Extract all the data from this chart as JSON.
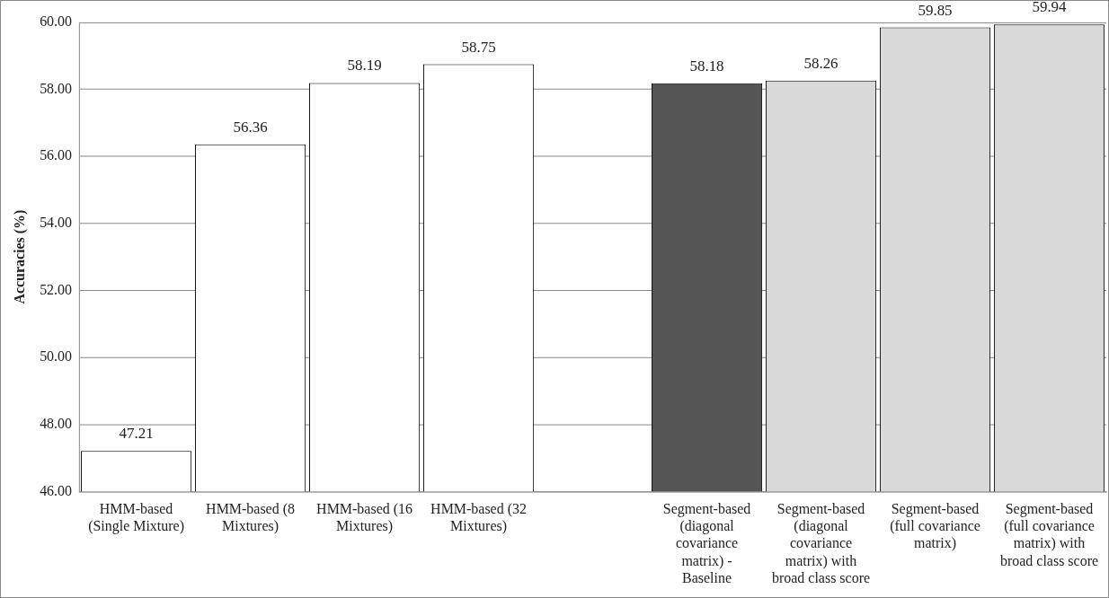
{
  "chart_data": {
    "type": "bar",
    "ylabel": "Accuracies (%)",
    "categories": [
      "HMM-based (Single Mixture)",
      "HMM-based (8 Mixtures)",
      "HMM-based (16 Mixtures)",
      "HMM-based (32 Mixtures)",
      null,
      "Segment-based (diagonal covariance matrix) - Baseline",
      "Segment-based (diagonal covariance matrix) with broad class score",
      "Segment-based (full covariance matrix)",
      "Segment-based (full covariance matrix) with broad class score"
    ],
    "values": [
      47.21,
      56.36,
      58.19,
      58.75,
      null,
      58.18,
      58.26,
      59.85,
      59.94
    ],
    "colors": [
      "#ffffff",
      "#ffffff",
      "#ffffff",
      "#ffffff",
      "#ffffff",
      "#555555",
      "#d9d9d9",
      "#d9d9d9",
      "#d9d9d9"
    ],
    "ylim": [
      46,
      60
    ],
    "yticks": [
      {
        "value": 46,
        "label": "46.00"
      },
      {
        "value": 48,
        "label": "48.00"
      },
      {
        "value": 50,
        "label": "50.00"
      },
      {
        "value": 52,
        "label": "52.00"
      },
      {
        "value": 54,
        "label": "54.00"
      },
      {
        "value": 56,
        "label": "56.00"
      },
      {
        "value": 58,
        "label": "58.00"
      },
      {
        "value": 60,
        "label": "60.00"
      }
    ],
    "grid": "y",
    "legend": false,
    "data_labels": true
  }
}
